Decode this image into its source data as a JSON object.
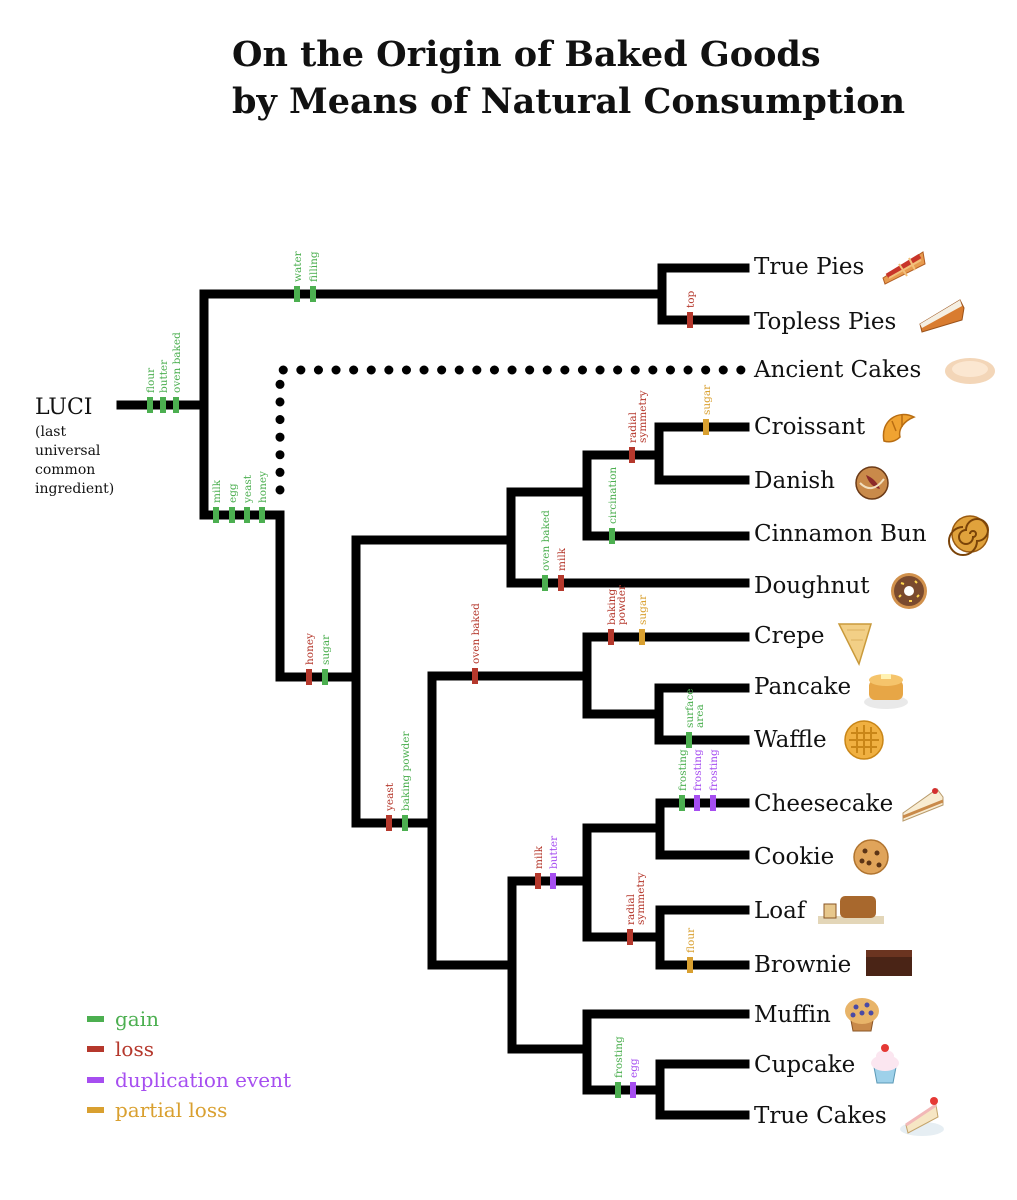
{
  "title": [
    "On the Origin of Baked Goods",
    "by Means of Natural Consumption"
  ],
  "root": {
    "name": "LUCI",
    "note": [
      "(last",
      "universal",
      "common",
      "ingredient)"
    ]
  },
  "colors": {
    "gain": "#4caf50",
    "loss": "#b5382c",
    "duplication": "#a64ef0",
    "partial_loss": "#d9a030",
    "branch": "#000000"
  },
  "legend": [
    {
      "type": "gain",
      "label": "gain"
    },
    {
      "type": "loss",
      "label": "loss"
    },
    {
      "type": "duplication",
      "label": "duplication event"
    },
    {
      "type": "partial_loss",
      "label": "partial loss"
    }
  ],
  "leaves": [
    {
      "name": "True Pies",
      "icon": "pie-slice-icon"
    },
    {
      "name": "Topless Pies",
      "icon": "pumpkin-pie-icon"
    },
    {
      "name": "Ancient Cakes",
      "icon": "flatbread-icon"
    },
    {
      "name": "Croissant",
      "icon": "croissant-icon"
    },
    {
      "name": "Danish",
      "icon": "danish-icon"
    },
    {
      "name": "Cinnamon Bun",
      "icon": "cinnamon-bun-icon"
    },
    {
      "name": "Doughnut",
      "icon": "doughnut-icon"
    },
    {
      "name": "Crepe",
      "icon": "crepe-icon"
    },
    {
      "name": "Pancake",
      "icon": "pancake-icon"
    },
    {
      "name": "Waffle",
      "icon": "waffle-icon"
    },
    {
      "name": "Cheesecake",
      "icon": "cheesecake-icon"
    },
    {
      "name": "Cookie",
      "icon": "cookie-icon"
    },
    {
      "name": "Loaf",
      "icon": "loaf-icon"
    },
    {
      "name": "Brownie",
      "icon": "brownie-icon"
    },
    {
      "name": "Muffin",
      "icon": "muffin-icon"
    },
    {
      "name": "Cupcake",
      "icon": "cupcake-icon"
    },
    {
      "name": "True Cakes",
      "icon": "cake-slice-icon"
    }
  ],
  "events": [
    {
      "type": "gain",
      "label": [
        "flour"
      ]
    },
    {
      "type": "gain",
      "label": [
        "butter"
      ]
    },
    {
      "type": "gain",
      "label": [
        "oven baked"
      ]
    },
    {
      "type": "gain",
      "label": [
        "water"
      ]
    },
    {
      "type": "gain",
      "label": [
        "filling"
      ]
    },
    {
      "type": "loss",
      "label": [
        "top"
      ]
    },
    {
      "type": "gain",
      "label": [
        "milk"
      ]
    },
    {
      "type": "gain",
      "label": [
        "egg"
      ]
    },
    {
      "type": "gain",
      "label": [
        "yeast"
      ]
    },
    {
      "type": "gain",
      "label": [
        "honey"
      ]
    },
    {
      "type": "loss",
      "label": [
        "honey"
      ]
    },
    {
      "type": "gain",
      "label": [
        "sugar"
      ]
    },
    {
      "type": "loss",
      "label": [
        "yeast"
      ]
    },
    {
      "type": "gain",
      "label": [
        "baking powder"
      ]
    },
    {
      "type": "loss",
      "label": [
        "oven baked"
      ]
    },
    {
      "type": "gain",
      "label": [
        "oven baked"
      ]
    },
    {
      "type": "loss",
      "label": [
        "milk"
      ]
    },
    {
      "type": "gain",
      "label": [
        "circination"
      ]
    },
    {
      "type": "loss",
      "label": [
        "radial",
        "symmetry"
      ]
    },
    {
      "type": "partial_loss",
      "label": [
        "sugar"
      ]
    },
    {
      "type": "loss",
      "label": [
        "baking",
        "powder"
      ]
    },
    {
      "type": "partial_loss",
      "label": [
        "sugar"
      ]
    },
    {
      "type": "gain",
      "label": [
        "surface",
        "area"
      ]
    },
    {
      "type": "loss",
      "label": [
        "milk"
      ]
    },
    {
      "type": "duplication",
      "label": [
        "butter"
      ]
    },
    {
      "type": "gain",
      "label": [
        "frosting"
      ]
    },
    {
      "type": "duplication",
      "label": [
        "frosting"
      ]
    },
    {
      "type": "duplication",
      "label": [
        "frosting"
      ]
    },
    {
      "type": "loss",
      "label": [
        "radial",
        "symmetry"
      ]
    },
    {
      "type": "partial_loss",
      "label": [
        "flour"
      ]
    },
    {
      "type": "gain",
      "label": [
        "frosting"
      ]
    },
    {
      "type": "duplication",
      "label": [
        "egg"
      ]
    }
  ]
}
